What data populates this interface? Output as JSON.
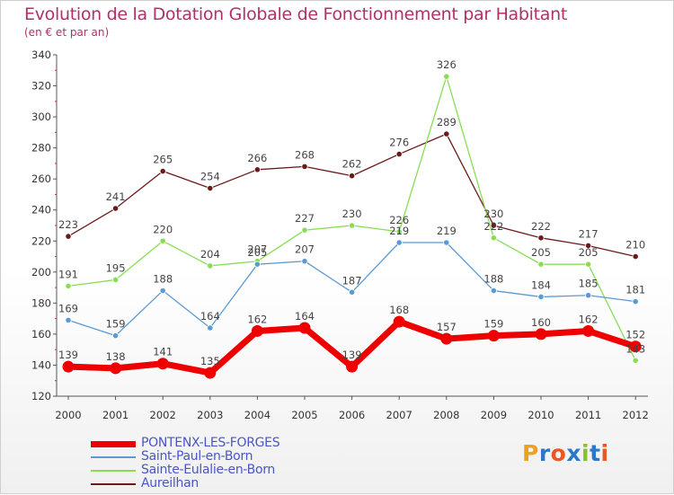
{
  "chart_data": {
    "type": "line",
    "title": "Evolution de la Dotation Globale de Fonctionnement par Habitant",
    "subtitle": "(en € et par an)",
    "categories": [
      "2000",
      "2001",
      "2002",
      "2003",
      "2004",
      "2005",
      "2006",
      "2007",
      "2008",
      "2009",
      "2010",
      "2011",
      "2012"
    ],
    "ylim": [
      120,
      340
    ],
    "yticks": [
      120,
      140,
      160,
      180,
      200,
      220,
      240,
      260,
      280,
      300,
      320,
      340
    ],
    "grid": false,
    "series": [
      {
        "name": "PONTENX-LES-FORGES",
        "color": "#ee0000",
        "values": [
          139,
          138,
          141,
          135,
          162,
          164,
          139,
          168,
          157,
          159,
          160,
          162,
          152
        ]
      },
      {
        "name": "Saint-Paul-en-Born",
        "color": "#5b9bd5",
        "values": [
          169,
          159,
          188,
          164,
          205,
          207,
          187,
          219,
          219,
          188,
          184,
          185,
          181
        ]
      },
      {
        "name": "Sainte-Eulalie-en-Born",
        "color": "#88dd55",
        "values": [
          191,
          195,
          220,
          204,
          207,
          227,
          230,
          226,
          326,
          222,
          205,
          205,
          143
        ]
      },
      {
        "name": "Aureilhan",
        "color": "#6b1a1a",
        "values": [
          223,
          241,
          265,
          254,
          266,
          268,
          262,
          276,
          289,
          230,
          222,
          217,
          210
        ]
      }
    ]
  },
  "logo": {
    "letters": [
      {
        "ch": "P",
        "color": "#f0a020"
      },
      {
        "ch": "r",
        "color": "#2a78c8"
      },
      {
        "ch": "o",
        "color": "#e85820"
      },
      {
        "ch": "x",
        "color": "#2a78c8"
      },
      {
        "ch": "i",
        "color": "#88c030"
      },
      {
        "ch": "t",
        "color": "#2a78c8"
      },
      {
        "ch": "i",
        "color": "#e85820"
      }
    ]
  }
}
